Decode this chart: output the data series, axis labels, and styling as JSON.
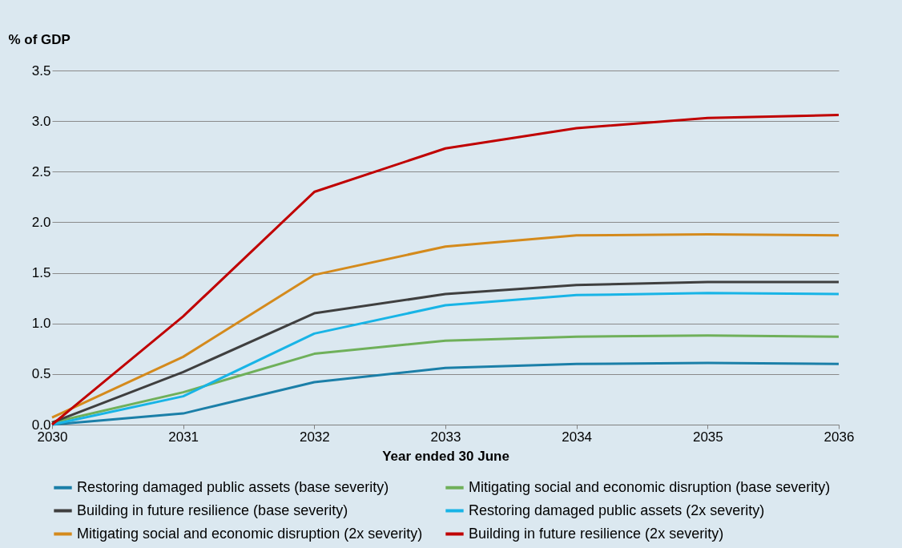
{
  "chart_data": {
    "type": "line",
    "ylabel": "% of GDP",
    "xlabel": "Year ended 30 June",
    "x": [
      2030,
      2031,
      2032,
      2033,
      2034,
      2035,
      2036
    ],
    "xlim": [
      2030,
      2036
    ],
    "xticks": [
      2030,
      2031,
      2032,
      2033,
      2034,
      2035,
      2036
    ],
    "ylim": [
      0,
      3.5
    ],
    "yticks": [
      {
        "value": 0,
        "label": "0.0"
      },
      0.5,
      {
        "value": 1,
        "label": "1.0"
      },
      1.5,
      {
        "value": 2,
        "label": "2.0"
      },
      2.5,
      {
        "value": 3,
        "label": "3.0"
      },
      3.5
    ],
    "grid": "y",
    "legend": "bottom",
    "marker": "none",
    "line_style": "solid",
    "series": [
      {
        "name": "Restoring damaged public assets (base severity)",
        "color": "#1b7fa8",
        "values": [
          0,
          0.11,
          0.42,
          0.56,
          0.6,
          0.61,
          0.6
        ]
      },
      {
        "name": "Mitigating social and economic disruption (base severity)",
        "color": "#6fb05a",
        "values": [
          0.02,
          0.32,
          0.7,
          0.83,
          0.87,
          0.88,
          0.87
        ]
      },
      {
        "name": "Building in future resilience (base severity)",
        "color": "#3f3f3f",
        "values": [
          0.02,
          0.52,
          1.1,
          1.29,
          1.38,
          1.41,
          1.41
        ]
      },
      {
        "name": "Restoring damaged public assets (2x severity)",
        "color": "#18b4e6",
        "values": [
          0,
          0.28,
          0.9,
          1.18,
          1.28,
          1.3,
          1.29
        ]
      },
      {
        "name": "Mitigating social and economic disruption (2x severity)",
        "color": "#d48a1c",
        "values": [
          0.07,
          0.67,
          1.48,
          1.76,
          1.87,
          1.88,
          1.87
        ]
      },
      {
        "name": "Building in future resilience (2x severity)",
        "color": "#c00000",
        "values": [
          0,
          1.07,
          2.3,
          2.73,
          2.93,
          3.03,
          3.06
        ]
      }
    ]
  }
}
